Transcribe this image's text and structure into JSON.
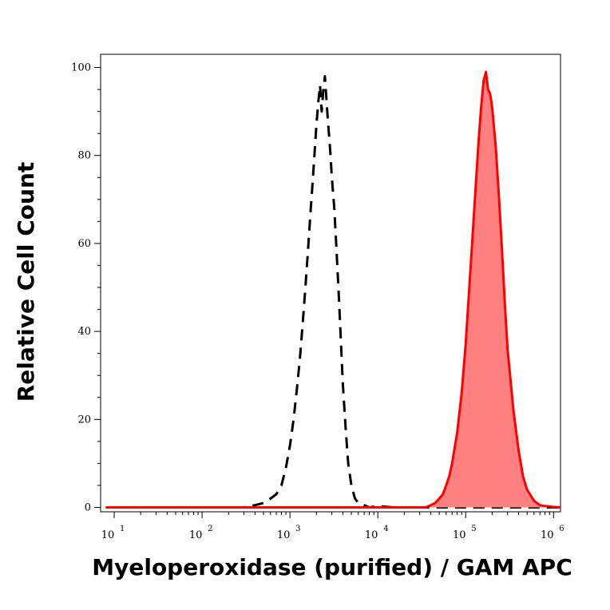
{
  "chart_data": {
    "type": "line",
    "xlabel": "Myeloperoxidase (purified) / GAM APC",
    "ylabel": "Relative Cell Count",
    "x_scale": "log",
    "xlim": [
      7,
      1200000
    ],
    "ylim": [
      -1,
      103
    ],
    "x_ticks": [
      {
        "value": 10,
        "base": "10",
        "exp": "1"
      },
      {
        "value": 100,
        "base": "10",
        "exp": "2"
      },
      {
        "value": 1000,
        "base": "10",
        "exp": "3"
      },
      {
        "value": 10000,
        "base": "10",
        "exp": "4"
      },
      {
        "value": 100000,
        "base": "10",
        "exp": "5"
      },
      {
        "value": 1000000,
        "base": "10",
        "exp": "6"
      }
    ],
    "y_ticks": [
      {
        "value": 0,
        "label": "0"
      },
      {
        "value": 20,
        "label": "20"
      },
      {
        "value": 40,
        "label": "40"
      },
      {
        "value": 60,
        "label": "60"
      },
      {
        "value": 80,
        "label": "80"
      },
      {
        "value": 100,
        "label": "100"
      }
    ],
    "grid": false,
    "series": [
      {
        "style": "dashed",
        "color": "#000000",
        "fill": "none",
        "x": [
          8,
          300,
          400,
          500,
          600,
          700,
          800,
          900,
          1000,
          1100,
          1200,
          1300,
          1400,
          1500,
          1600,
          1700,
          1800,
          1900,
          2000,
          2100,
          2200,
          2300,
          2400,
          2500,
          2600,
          2700,
          2800,
          2900,
          3000,
          3200,
          3400,
          3600,
          3800,
          4000,
          4300,
          4600,
          5000,
          5500,
          6000,
          7000,
          8000,
          10000,
          15000,
          1200000
        ],
        "y": [
          0,
          0,
          0.5,
          1,
          2,
          3,
          5,
          9,
          14,
          20,
          27,
          34,
          42,
          50,
          58,
          66,
          73,
          80,
          87,
          92,
          96,
          90,
          95,
          98,
          93,
          88,
          84,
          80,
          75,
          68,
          58,
          48,
          38,
          28,
          18,
          10,
          5,
          2,
          1,
          0.5,
          0,
          0.3,
          0,
          0
        ]
      },
      {
        "style": "solid",
        "color": "#ff0000",
        "fill": "#ff8080",
        "x": [
          8,
          35000,
          40000,
          45000,
          50000,
          55000,
          60000,
          65000,
          70000,
          80000,
          90000,
          100000,
          110000,
          120000,
          130000,
          140000,
          150000,
          160000,
          170000,
          180000,
          190000,
          200000,
          220000,
          240000,
          260000,
          280000,
          300000,
          350000,
          400000,
          450000,
          500000,
          600000,
          700000,
          800000,
          1000000,
          1200000
        ],
        "y": [
          0,
          0,
          0.5,
          1,
          2,
          3,
          5,
          7,
          10,
          17,
          26,
          37,
          50,
          62,
          73,
          83,
          91,
          97,
          99,
          95,
          94,
          91,
          82,
          70,
          58,
          46,
          36,
          22,
          13,
          7,
          4,
          1.5,
          0.5,
          0.3,
          0.1,
          0
        ]
      }
    ]
  }
}
